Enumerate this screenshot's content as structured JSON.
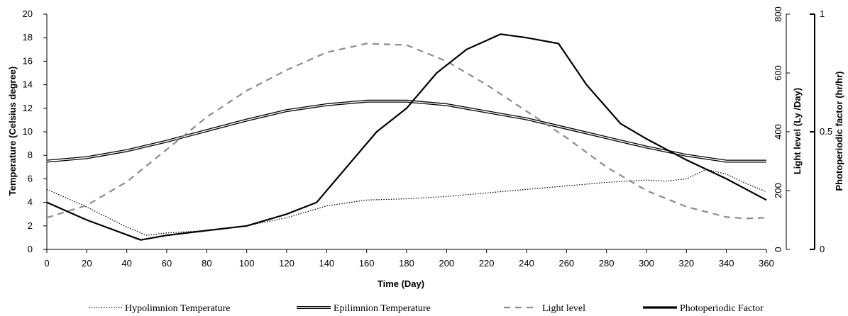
{
  "chart_data": {
    "type": "line",
    "xlabel": "Time (Day)",
    "ylabel_left": "Temperature (Celsius degree)",
    "ylabel_right1": "Light level (Ly /Day)",
    "ylabel_right2": "Photoperiodic factor (hr/hr)",
    "xlim": [
      0,
      360
    ],
    "x_ticks": [
      "0",
      "20",
      "40",
      "60",
      "80",
      "100",
      "120",
      "140",
      "160",
      "180",
      "200",
      "220",
      "240",
      "260",
      "280",
      "300",
      "320",
      "340",
      "360"
    ],
    "ylim_left": [
      0,
      20
    ],
    "y_ticks_left": [
      "0",
      "2",
      "4",
      "6",
      "8",
      "10",
      "12",
      "14",
      "16",
      "18",
      "20"
    ],
    "ylim_light": [
      0,
      800
    ],
    "y_ticks_light": [
      "0",
      "200",
      "400",
      "600",
      "800"
    ],
    "ylim_photo": [
      0,
      1
    ],
    "y_ticks_photo": [
      "0",
      "0.5",
      "1"
    ],
    "legend_position": "bottom",
    "grid": false,
    "series": [
      {
        "name": "Hypolimnion Temperature",
        "axis": "temperature",
        "style": "dotted",
        "points": [
          [
            0,
            5.1
          ],
          [
            20,
            3.6
          ],
          [
            40,
            1.9
          ],
          [
            50,
            1.2
          ],
          [
            60,
            1.4
          ],
          [
            80,
            1.6
          ],
          [
            100,
            2.0
          ],
          [
            120,
            2.7
          ],
          [
            140,
            3.7
          ],
          [
            160,
            4.2
          ],
          [
            180,
            4.3
          ],
          [
            200,
            4.5
          ],
          [
            220,
            4.8
          ],
          [
            240,
            5.1
          ],
          [
            260,
            5.4
          ],
          [
            280,
            5.7
          ],
          [
            300,
            5.9
          ],
          [
            310,
            5.8
          ],
          [
            320,
            6.0
          ],
          [
            330,
            6.8
          ],
          [
            340,
            6.4
          ],
          [
            350,
            5.6
          ],
          [
            360,
            4.9
          ]
        ]
      },
      {
        "name": "Epilimnion Temperature",
        "axis": "temperature",
        "style": "double",
        "points": [
          [
            0,
            7.5
          ],
          [
            20,
            7.8
          ],
          [
            40,
            8.4
          ],
          [
            60,
            9.2
          ],
          [
            80,
            10.1
          ],
          [
            100,
            11.0
          ],
          [
            120,
            11.8
          ],
          [
            140,
            12.3
          ],
          [
            160,
            12.6
          ],
          [
            180,
            12.6
          ],
          [
            200,
            12.3
          ],
          [
            220,
            11.7
          ],
          [
            240,
            11.1
          ],
          [
            260,
            10.3
          ],
          [
            280,
            9.5
          ],
          [
            300,
            8.7
          ],
          [
            320,
            8.0
          ],
          [
            340,
            7.5
          ],
          [
            360,
            7.5
          ]
        ]
      },
      {
        "name": "Light level",
        "axis": "light",
        "style": "dashed",
        "points": [
          [
            0,
            108
          ],
          [
            20,
            150
          ],
          [
            40,
            230
          ],
          [
            60,
            340
          ],
          [
            80,
            450
          ],
          [
            100,
            540
          ],
          [
            120,
            610
          ],
          [
            140,
            670
          ],
          [
            160,
            700
          ],
          [
            180,
            695
          ],
          [
            200,
            640
          ],
          [
            220,
            560
          ],
          [
            240,
            470
          ],
          [
            260,
            380
          ],
          [
            280,
            280
          ],
          [
            300,
            200
          ],
          [
            320,
            145
          ],
          [
            340,
            110
          ],
          [
            350,
            105
          ],
          [
            360,
            108
          ]
        ]
      },
      {
        "name": "Photoperiodic Factor",
        "axis": "photo",
        "style": "solid-thick",
        "points": [
          [
            0,
            0.2
          ],
          [
            20,
            0.125
          ],
          [
            47,
            0.04
          ],
          [
            60,
            0.06
          ],
          [
            80,
            0.08
          ],
          [
            100,
            0.1
          ],
          [
            120,
            0.15
          ],
          [
            135,
            0.2
          ],
          [
            145,
            0.3
          ],
          [
            155,
            0.4
          ],
          [
            165,
            0.5
          ],
          [
            180,
            0.6
          ],
          [
            195,
            0.75
          ],
          [
            210,
            0.85
          ],
          [
            227,
            0.915
          ],
          [
            240,
            0.9
          ],
          [
            256,
            0.875
          ],
          [
            270,
            0.7
          ],
          [
            287,
            0.535
          ],
          [
            300,
            0.47
          ],
          [
            320,
            0.38
          ],
          [
            340,
            0.3
          ],
          [
            360,
            0.21
          ]
        ]
      }
    ]
  }
}
